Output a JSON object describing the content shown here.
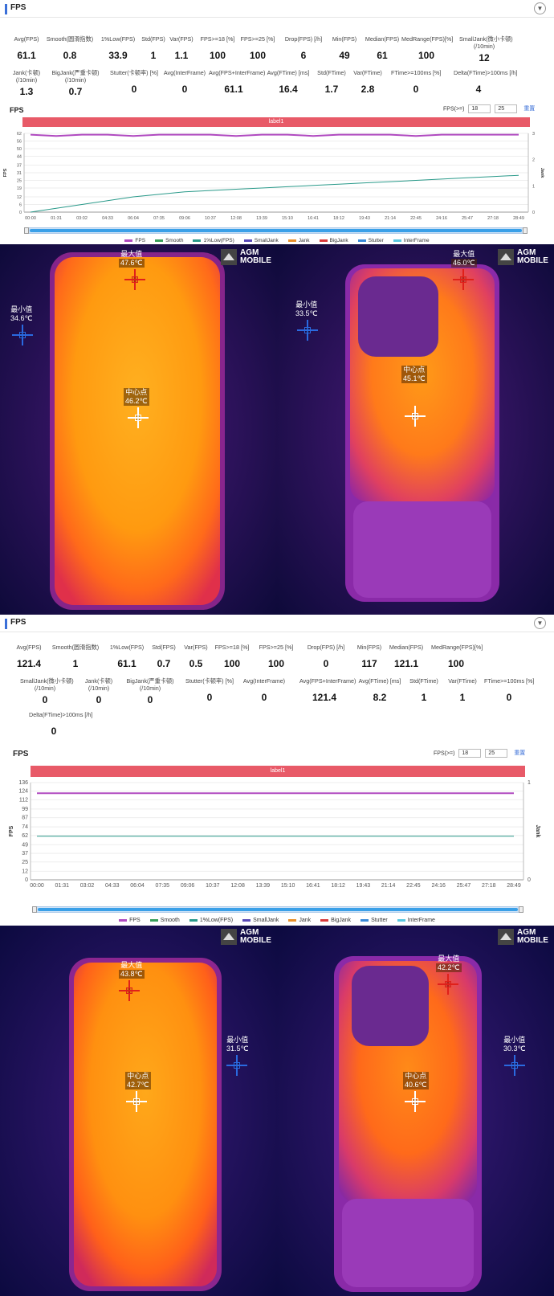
{
  "panel1": {
    "title": "FPS",
    "stats_row1": [
      {
        "label": "Avg(FPS)",
        "value": "61.1"
      },
      {
        "label": "Smooth(圆滑指数)",
        "value": "0.8"
      },
      {
        "label": "1%Low(FPS)",
        "value": "33.9"
      },
      {
        "label": "Std(FPS)",
        "value": "1"
      },
      {
        "label": "Var(FPS)",
        "value": "1.1"
      },
      {
        "label": "FPS>=18 [%]",
        "value": "100"
      },
      {
        "label": "FPS>=25 [%]",
        "value": "100"
      },
      {
        "label": "Drop(FPS) [/h]",
        "value": "6"
      },
      {
        "label": "Min(FPS)",
        "value": "49"
      },
      {
        "label": "Median(FPS)",
        "value": "61"
      },
      {
        "label": "MedRange(FPS)[%]",
        "value": "100"
      },
      {
        "label": "SmallJank(微小卡顿)",
        "label2": "(/10min)",
        "value": "12"
      }
    ],
    "stats_row2": [
      {
        "label": "Jank(卡顿)",
        "label2": "(/10min)",
        "value": "1.3"
      },
      {
        "label": "BigJank(严重卡顿)",
        "label2": "(/10min)",
        "value": "0.7"
      },
      {
        "label": "Stutter(卡顿率) [%]",
        "value": "0"
      },
      {
        "label": "Avg(InterFrame)",
        "value": "0"
      },
      {
        "label": "Avg(FPS+InterFrame)",
        "value": "61.1"
      },
      {
        "label": "Avg(FTime) [ms]",
        "value": "16.4"
      },
      {
        "label": "Std(FTime)",
        "value": "1.7"
      },
      {
        "label": "Var(FTime)",
        "value": "2.8"
      },
      {
        "label": "FTime>=100ms [%]",
        "value": "0"
      },
      {
        "label": "Delta(FTime)>100ms [/h]",
        "value": "4"
      }
    ],
    "chart_title": "FPS",
    "threshold_label": "FPS(>=)",
    "threshold1": "18",
    "threshold2": "25",
    "reset": "重置",
    "band_label": "label1"
  },
  "panel2": {
    "title": "FPS",
    "stats_row1": [
      {
        "label": "Avg(FPS)",
        "value": "121.4"
      },
      {
        "label": "Smooth(圆滑指数)",
        "value": "1"
      },
      {
        "label": "1%Low(FPS)",
        "value": "61.1"
      },
      {
        "label": "Std(FPS)",
        "value": "0.7"
      },
      {
        "label": "Var(FPS)",
        "value": "0.5"
      },
      {
        "label": "FPS>=18 [%]",
        "value": "100"
      },
      {
        "label": "FPS>=25 [%]",
        "value": "100"
      },
      {
        "label": "Drop(FPS) [/h]",
        "value": "0"
      },
      {
        "label": "Min(FPS)",
        "value": "117"
      },
      {
        "label": "Median(FPS)",
        "value": "121.1"
      },
      {
        "label": "MedRange(FPS)[%]",
        "value": "100"
      }
    ],
    "stats_row2": [
      {
        "label": "SmallJank(微小卡顿)",
        "label2": "(/10min)",
        "value": "0"
      },
      {
        "label": "Jank(卡顿)",
        "label2": "(/10min)",
        "value": "0"
      },
      {
        "label": "BigJank(严重卡顿)",
        "label2": "(/10min)",
        "value": "0"
      },
      {
        "label": "Stutter(卡顿率) [%]",
        "value": "0"
      },
      {
        "label": "Avg(InterFrame)",
        "value": "0"
      },
      {
        "label": "Avg(FPS+InterFrame)",
        "value": "121.4"
      },
      {
        "label": "Avg(FTime) [ms]",
        "value": "8.2"
      },
      {
        "label": "Std(FTime)",
        "value": "1"
      },
      {
        "label": "Var(FTime)",
        "value": "1"
      },
      {
        "label": "FTime>=100ms [%]",
        "value": "0"
      }
    ],
    "stats_row3": [
      {
        "label": "Delta(FTime)>100ms [/h]",
        "value": "0"
      }
    ],
    "chart_title": "FPS",
    "threshold_label": "FPS(>=)",
    "threshold1": "18",
    "threshold2": "25",
    "reset": "重置",
    "band_label": "label1"
  },
  "legend": [
    "FPS",
    "Smooth",
    "1%Low(FPS)",
    "SmallJank",
    "Jank",
    "BigJank",
    "Stutter",
    "InterFrame"
  ],
  "legend_colors": [
    "#b04ac0",
    "#3aa05a",
    "#2a9a8a",
    "#5a4ab8",
    "#e8902a",
    "#d83a3a",
    "#3a8ad8",
    "#5ac8e0"
  ],
  "chart_data": [
    {
      "type": "line",
      "ylabel": "FPS",
      "y2label": "Jank",
      "yticks": [
        0,
        6,
        12,
        19,
        25,
        31,
        37,
        44,
        50,
        56,
        62
      ],
      "y2ticks": [
        0,
        1,
        2,
        3
      ],
      "x": [
        "00:00",
        "01:31",
        "03:02",
        "04:33",
        "06:04",
        "07:35",
        "09:06",
        "10:37",
        "12:08",
        "13:39",
        "15:10",
        "16:41",
        "18:12",
        "19:43",
        "21:14",
        "22:45",
        "24:16",
        "25:47",
        "27:18",
        "28:49"
      ],
      "ylim": [
        0,
        62
      ],
      "series": [
        {
          "name": "FPS",
          "values": [
            61,
            60,
            61,
            61,
            60,
            61,
            61,
            61,
            60,
            61,
            61,
            60,
            61,
            61,
            61,
            60,
            61,
            61,
            61,
            61
          ]
        },
        {
          "name": "1%Low(FPS)",
          "values": [
            0,
            3,
            6,
            9,
            12,
            14,
            16,
            17,
            18,
            19,
            20,
            21,
            22,
            23,
            24,
            25,
            26,
            27,
            28,
            29
          ]
        }
      ]
    },
    {
      "type": "line",
      "ylabel": "FPS",
      "y2label": "Jank",
      "yticks": [
        0,
        12,
        25,
        37,
        49,
        62,
        74,
        87,
        99,
        112,
        124,
        136
      ],
      "y2ticks": [
        0,
        1
      ],
      "x": [
        "00:00",
        "01:31",
        "03:02",
        "04:33",
        "06:04",
        "07:35",
        "09:06",
        "10:37",
        "12:08",
        "13:39",
        "15:10",
        "16:41",
        "18:12",
        "19:43",
        "21:14",
        "22:45",
        "24:16",
        "25:47",
        "27:18",
        "28:49"
      ],
      "ylim": [
        0,
        136
      ],
      "series": [
        {
          "name": "FPS",
          "values": [
            121,
            121,
            121,
            121,
            121,
            121,
            121,
            121,
            121,
            121,
            121,
            121,
            121,
            121,
            121,
            121,
            121,
            121,
            121,
            121
          ]
        },
        {
          "name": "1%Low(FPS)",
          "values": [
            61,
            61,
            61,
            61,
            61,
            61,
            61,
            61,
            61,
            61,
            61,
            61,
            61,
            61,
            61,
            61,
            61,
            61,
            61,
            61
          ]
        }
      ]
    }
  ],
  "thermal": {
    "logo_line1": "AGM",
    "logo_line2": "MOBILE",
    "max_label": "最大值",
    "min_label": "最小值",
    "center_label": "中心点",
    "row1": {
      "front": {
        "max": "47.6℃",
        "min": "34.6℃",
        "center": "46.2℃"
      },
      "back": {
        "max": "46.0℃",
        "min": "33.5℃",
        "center": "45.1℃"
      }
    },
    "row2": {
      "front": {
        "max": "43.8℃",
        "min": "31.5℃",
        "center": "42.7℃"
      },
      "back": {
        "max": "42.2℃",
        "min": "30.3℃",
        "center": "40.6℃"
      }
    }
  }
}
